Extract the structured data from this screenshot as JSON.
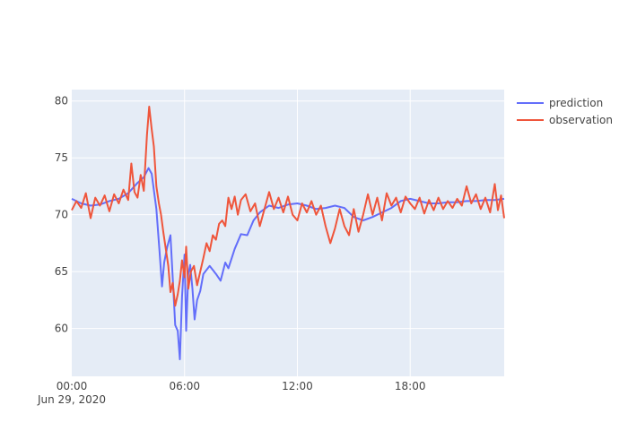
{
  "chart_data": {
    "type": "line",
    "title": "",
    "xlabel": "",
    "ylabel": "",
    "x_type": "time",
    "x_start": "2020-06-29 00:00",
    "x_end": "2020-06-29 23:00",
    "x_ticks": [
      {
        "value": "2020-06-29 00:00",
        "label": "00:00",
        "sublabel": "Jun 29, 2020"
      },
      {
        "value": "2020-06-29 06:00",
        "label": "06:00",
        "sublabel": ""
      },
      {
        "value": "2020-06-29 12:00",
        "label": "12:00",
        "sublabel": ""
      },
      {
        "value": "2020-06-29 18:00",
        "label": "18:00",
        "sublabel": ""
      }
    ],
    "ylim": [
      55.8,
      81
    ],
    "y_ticks": [
      60,
      65,
      70,
      75,
      80
    ],
    "grid": true,
    "legend_position": "top-right",
    "background": "#E5ECF6",
    "series": [
      {
        "name": "prediction",
        "color": "#636EFA",
        "points": [
          [
            "2020-06-29 00:00",
            71.4
          ],
          [
            "2020-06-29 00:30",
            71.0
          ],
          [
            "2020-06-29 01:00",
            70.8
          ],
          [
            "2020-06-29 01:30",
            70.9
          ],
          [
            "2020-06-29 02:00",
            71.2
          ],
          [
            "2020-06-29 02:30",
            71.4
          ],
          [
            "2020-06-29 03:00",
            71.9
          ],
          [
            "2020-06-29 03:30",
            72.8
          ],
          [
            "2020-06-29 03:50",
            73.3
          ],
          [
            "2020-06-29 04:05",
            74.1
          ],
          [
            "2020-06-29 04:15",
            73.6
          ],
          [
            "2020-06-29 04:30",
            70.5
          ],
          [
            "2020-06-29 04:40",
            66.8
          ],
          [
            "2020-06-29 04:48",
            63.7
          ],
          [
            "2020-06-29 04:55",
            65.8
          ],
          [
            "2020-06-29 05:05",
            67.2
          ],
          [
            "2020-06-29 05:15",
            68.2
          ],
          [
            "2020-06-29 05:22",
            64.5
          ],
          [
            "2020-06-29 05:30",
            60.3
          ],
          [
            "2020-06-29 05:38",
            59.8
          ],
          [
            "2020-06-29 05:45",
            57.3
          ],
          [
            "2020-06-29 05:52",
            62.8
          ],
          [
            "2020-06-29 06:00",
            66.5
          ],
          [
            "2020-06-29 06:05",
            59.8
          ],
          [
            "2020-06-29 06:12",
            64.8
          ],
          [
            "2020-06-29 06:18",
            65.6
          ],
          [
            "2020-06-29 06:25",
            63.5
          ],
          [
            "2020-06-29 06:32",
            60.8
          ],
          [
            "2020-06-29 06:40",
            62.5
          ],
          [
            "2020-06-29 06:50",
            63.3
          ],
          [
            "2020-06-29 07:00",
            64.8
          ],
          [
            "2020-06-29 07:20",
            65.5
          ],
          [
            "2020-06-29 07:40",
            64.8
          ],
          [
            "2020-06-29 07:55",
            64.2
          ],
          [
            "2020-06-29 08:10",
            65.8
          ],
          [
            "2020-06-29 08:20",
            65.3
          ],
          [
            "2020-06-29 08:40",
            67.0
          ],
          [
            "2020-06-29 09:00",
            68.3
          ],
          [
            "2020-06-29 09:20",
            68.2
          ],
          [
            "2020-06-29 09:40",
            69.5
          ],
          [
            "2020-06-29 10:00",
            70.2
          ],
          [
            "2020-06-29 10:30",
            70.8
          ],
          [
            "2020-06-29 11:00",
            70.6
          ],
          [
            "2020-06-29 11:30",
            70.9
          ],
          [
            "2020-06-29 12:00",
            71.0
          ],
          [
            "2020-06-29 12:30",
            70.8
          ],
          [
            "2020-06-29 13:00",
            70.5
          ],
          [
            "2020-06-29 13:30",
            70.6
          ],
          [
            "2020-06-29 14:00",
            70.8
          ],
          [
            "2020-06-29 14:30",
            70.6
          ],
          [
            "2020-06-29 15:00",
            69.8
          ],
          [
            "2020-06-29 15:30",
            69.5
          ],
          [
            "2020-06-29 16:00",
            69.8
          ],
          [
            "2020-06-29 16:30",
            70.2
          ],
          [
            "2020-06-29 17:00",
            70.6
          ],
          [
            "2020-06-29 17:30",
            71.2
          ],
          [
            "2020-06-29 18:00",
            71.4
          ],
          [
            "2020-06-29 18:30",
            71.2
          ],
          [
            "2020-06-29 19:00",
            71.0
          ],
          [
            "2020-06-29 19:30",
            71.0
          ],
          [
            "2020-06-29 20:00",
            71.1
          ],
          [
            "2020-06-29 20:30",
            71.1
          ],
          [
            "2020-06-29 21:00",
            71.2
          ],
          [
            "2020-06-29 21:30",
            71.2
          ],
          [
            "2020-06-29 22:00",
            71.3
          ],
          [
            "2020-06-29 22:30",
            71.3
          ],
          [
            "2020-06-29 23:00",
            71.4
          ]
        ]
      },
      {
        "name": "observation",
        "color": "#EF553B",
        "points": [
          [
            "2020-06-29 00:00",
            70.4
          ],
          [
            "2020-06-29 00:15",
            71.2
          ],
          [
            "2020-06-29 00:30",
            70.6
          ],
          [
            "2020-06-29 00:45",
            71.9
          ],
          [
            "2020-06-29 01:00",
            69.7
          ],
          [
            "2020-06-29 01:15",
            71.5
          ],
          [
            "2020-06-29 01:30",
            70.8
          ],
          [
            "2020-06-29 01:45",
            71.7
          ],
          [
            "2020-06-29 02:00",
            70.3
          ],
          [
            "2020-06-29 02:15",
            71.8
          ],
          [
            "2020-06-29 02:30",
            71.0
          ],
          [
            "2020-06-29 02:45",
            72.2
          ],
          [
            "2020-06-29 03:00",
            71.3
          ],
          [
            "2020-06-29 03:10",
            74.5
          ],
          [
            "2020-06-29 03:20",
            72.0
          ],
          [
            "2020-06-29 03:30",
            71.5
          ],
          [
            "2020-06-29 03:40",
            73.5
          ],
          [
            "2020-06-29 03:50",
            72.1
          ],
          [
            "2020-06-29 04:00",
            77.0
          ],
          [
            "2020-06-29 04:07",
            79.5
          ],
          [
            "2020-06-29 04:15",
            77.5
          ],
          [
            "2020-06-29 04:22",
            76.0
          ],
          [
            "2020-06-29 04:30",
            72.5
          ],
          [
            "2020-06-29 04:38",
            71.0
          ],
          [
            "2020-06-29 04:45",
            70.0
          ],
          [
            "2020-06-29 04:52",
            68.5
          ],
          [
            "2020-06-29 05:00",
            67.0
          ],
          [
            "2020-06-29 05:08",
            65.5
          ],
          [
            "2020-06-29 05:15",
            63.2
          ],
          [
            "2020-06-29 05:22",
            64.0
          ],
          [
            "2020-06-29 05:30",
            62.0
          ],
          [
            "2020-06-29 05:38",
            63.0
          ],
          [
            "2020-06-29 05:45",
            64.2
          ],
          [
            "2020-06-29 05:52",
            66.0
          ],
          [
            "2020-06-29 06:00",
            64.5
          ],
          [
            "2020-06-29 06:05",
            67.2
          ],
          [
            "2020-06-29 06:12",
            63.5
          ],
          [
            "2020-06-29 06:20",
            65.0
          ],
          [
            "2020-06-29 06:30",
            65.5
          ],
          [
            "2020-06-29 06:40",
            63.8
          ],
          [
            "2020-06-29 06:50",
            65.0
          ],
          [
            "2020-06-29 07:00",
            66.2
          ],
          [
            "2020-06-29 07:10",
            67.5
          ],
          [
            "2020-06-29 07:20",
            66.8
          ],
          [
            "2020-06-29 07:30",
            68.2
          ],
          [
            "2020-06-29 07:40",
            67.8
          ],
          [
            "2020-06-29 07:50",
            69.2
          ],
          [
            "2020-06-29 08:00",
            69.5
          ],
          [
            "2020-06-29 08:10",
            69.0
          ],
          [
            "2020-06-29 08:20",
            71.5
          ],
          [
            "2020-06-29 08:30",
            70.5
          ],
          [
            "2020-06-29 08:40",
            71.6
          ],
          [
            "2020-06-29 08:50",
            70.0
          ],
          [
            "2020-06-29 09:00",
            71.3
          ],
          [
            "2020-06-29 09:15",
            71.8
          ],
          [
            "2020-06-29 09:30",
            70.3
          ],
          [
            "2020-06-29 09:45",
            71.0
          ],
          [
            "2020-06-29 10:00",
            69.0
          ],
          [
            "2020-06-29 10:15",
            70.5
          ],
          [
            "2020-06-29 10:30",
            72.0
          ],
          [
            "2020-06-29 10:45",
            70.5
          ],
          [
            "2020-06-29 11:00",
            71.5
          ],
          [
            "2020-06-29 11:15",
            70.2
          ],
          [
            "2020-06-29 11:30",
            71.6
          ],
          [
            "2020-06-29 11:45",
            70.0
          ],
          [
            "2020-06-29 12:00",
            69.5
          ],
          [
            "2020-06-29 12:15",
            71.0
          ],
          [
            "2020-06-29 12:30",
            70.2
          ],
          [
            "2020-06-29 12:45",
            71.2
          ],
          [
            "2020-06-29 13:00",
            70.0
          ],
          [
            "2020-06-29 13:15",
            70.8
          ],
          [
            "2020-06-29 13:30",
            69.0
          ],
          [
            "2020-06-29 13:45",
            67.5
          ],
          [
            "2020-06-29 14:00",
            68.8
          ],
          [
            "2020-06-29 14:15",
            70.5
          ],
          [
            "2020-06-29 14:30",
            69.0
          ],
          [
            "2020-06-29 14:45",
            68.2
          ],
          [
            "2020-06-29 15:00",
            70.5
          ],
          [
            "2020-06-29 15:15",
            68.5
          ],
          [
            "2020-06-29 15:30",
            70.0
          ],
          [
            "2020-06-29 15:45",
            71.8
          ],
          [
            "2020-06-29 16:00",
            70.0
          ],
          [
            "2020-06-29 16:15",
            71.5
          ],
          [
            "2020-06-29 16:30",
            69.5
          ],
          [
            "2020-06-29 16:45",
            71.9
          ],
          [
            "2020-06-29 17:00",
            70.8
          ],
          [
            "2020-06-29 17:15",
            71.5
          ],
          [
            "2020-06-29 17:30",
            70.2
          ],
          [
            "2020-06-29 17:45",
            71.6
          ],
          [
            "2020-06-29 18:00",
            71.0
          ],
          [
            "2020-06-29 18:15",
            70.5
          ],
          [
            "2020-06-29 18:30",
            71.5
          ],
          [
            "2020-06-29 18:45",
            70.1
          ],
          [
            "2020-06-29 19:00",
            71.3
          ],
          [
            "2020-06-29 19:15",
            70.4
          ],
          [
            "2020-06-29 19:30",
            71.5
          ],
          [
            "2020-06-29 19:45",
            70.5
          ],
          [
            "2020-06-29 20:00",
            71.2
          ],
          [
            "2020-06-29 20:15",
            70.6
          ],
          [
            "2020-06-29 20:30",
            71.4
          ],
          [
            "2020-06-29 20:45",
            70.8
          ],
          [
            "2020-06-29 21:00",
            72.5
          ],
          [
            "2020-06-29 21:15",
            71.0
          ],
          [
            "2020-06-29 21:30",
            71.8
          ],
          [
            "2020-06-29 21:45",
            70.5
          ],
          [
            "2020-06-29 22:00",
            71.5
          ],
          [
            "2020-06-29 22:15",
            70.2
          ],
          [
            "2020-06-29 22:30",
            72.7
          ],
          [
            "2020-06-29 22:40",
            70.4
          ],
          [
            "2020-06-29 22:50",
            71.7
          ],
          [
            "2020-06-29 23:00",
            69.7
          ]
        ]
      }
    ]
  }
}
